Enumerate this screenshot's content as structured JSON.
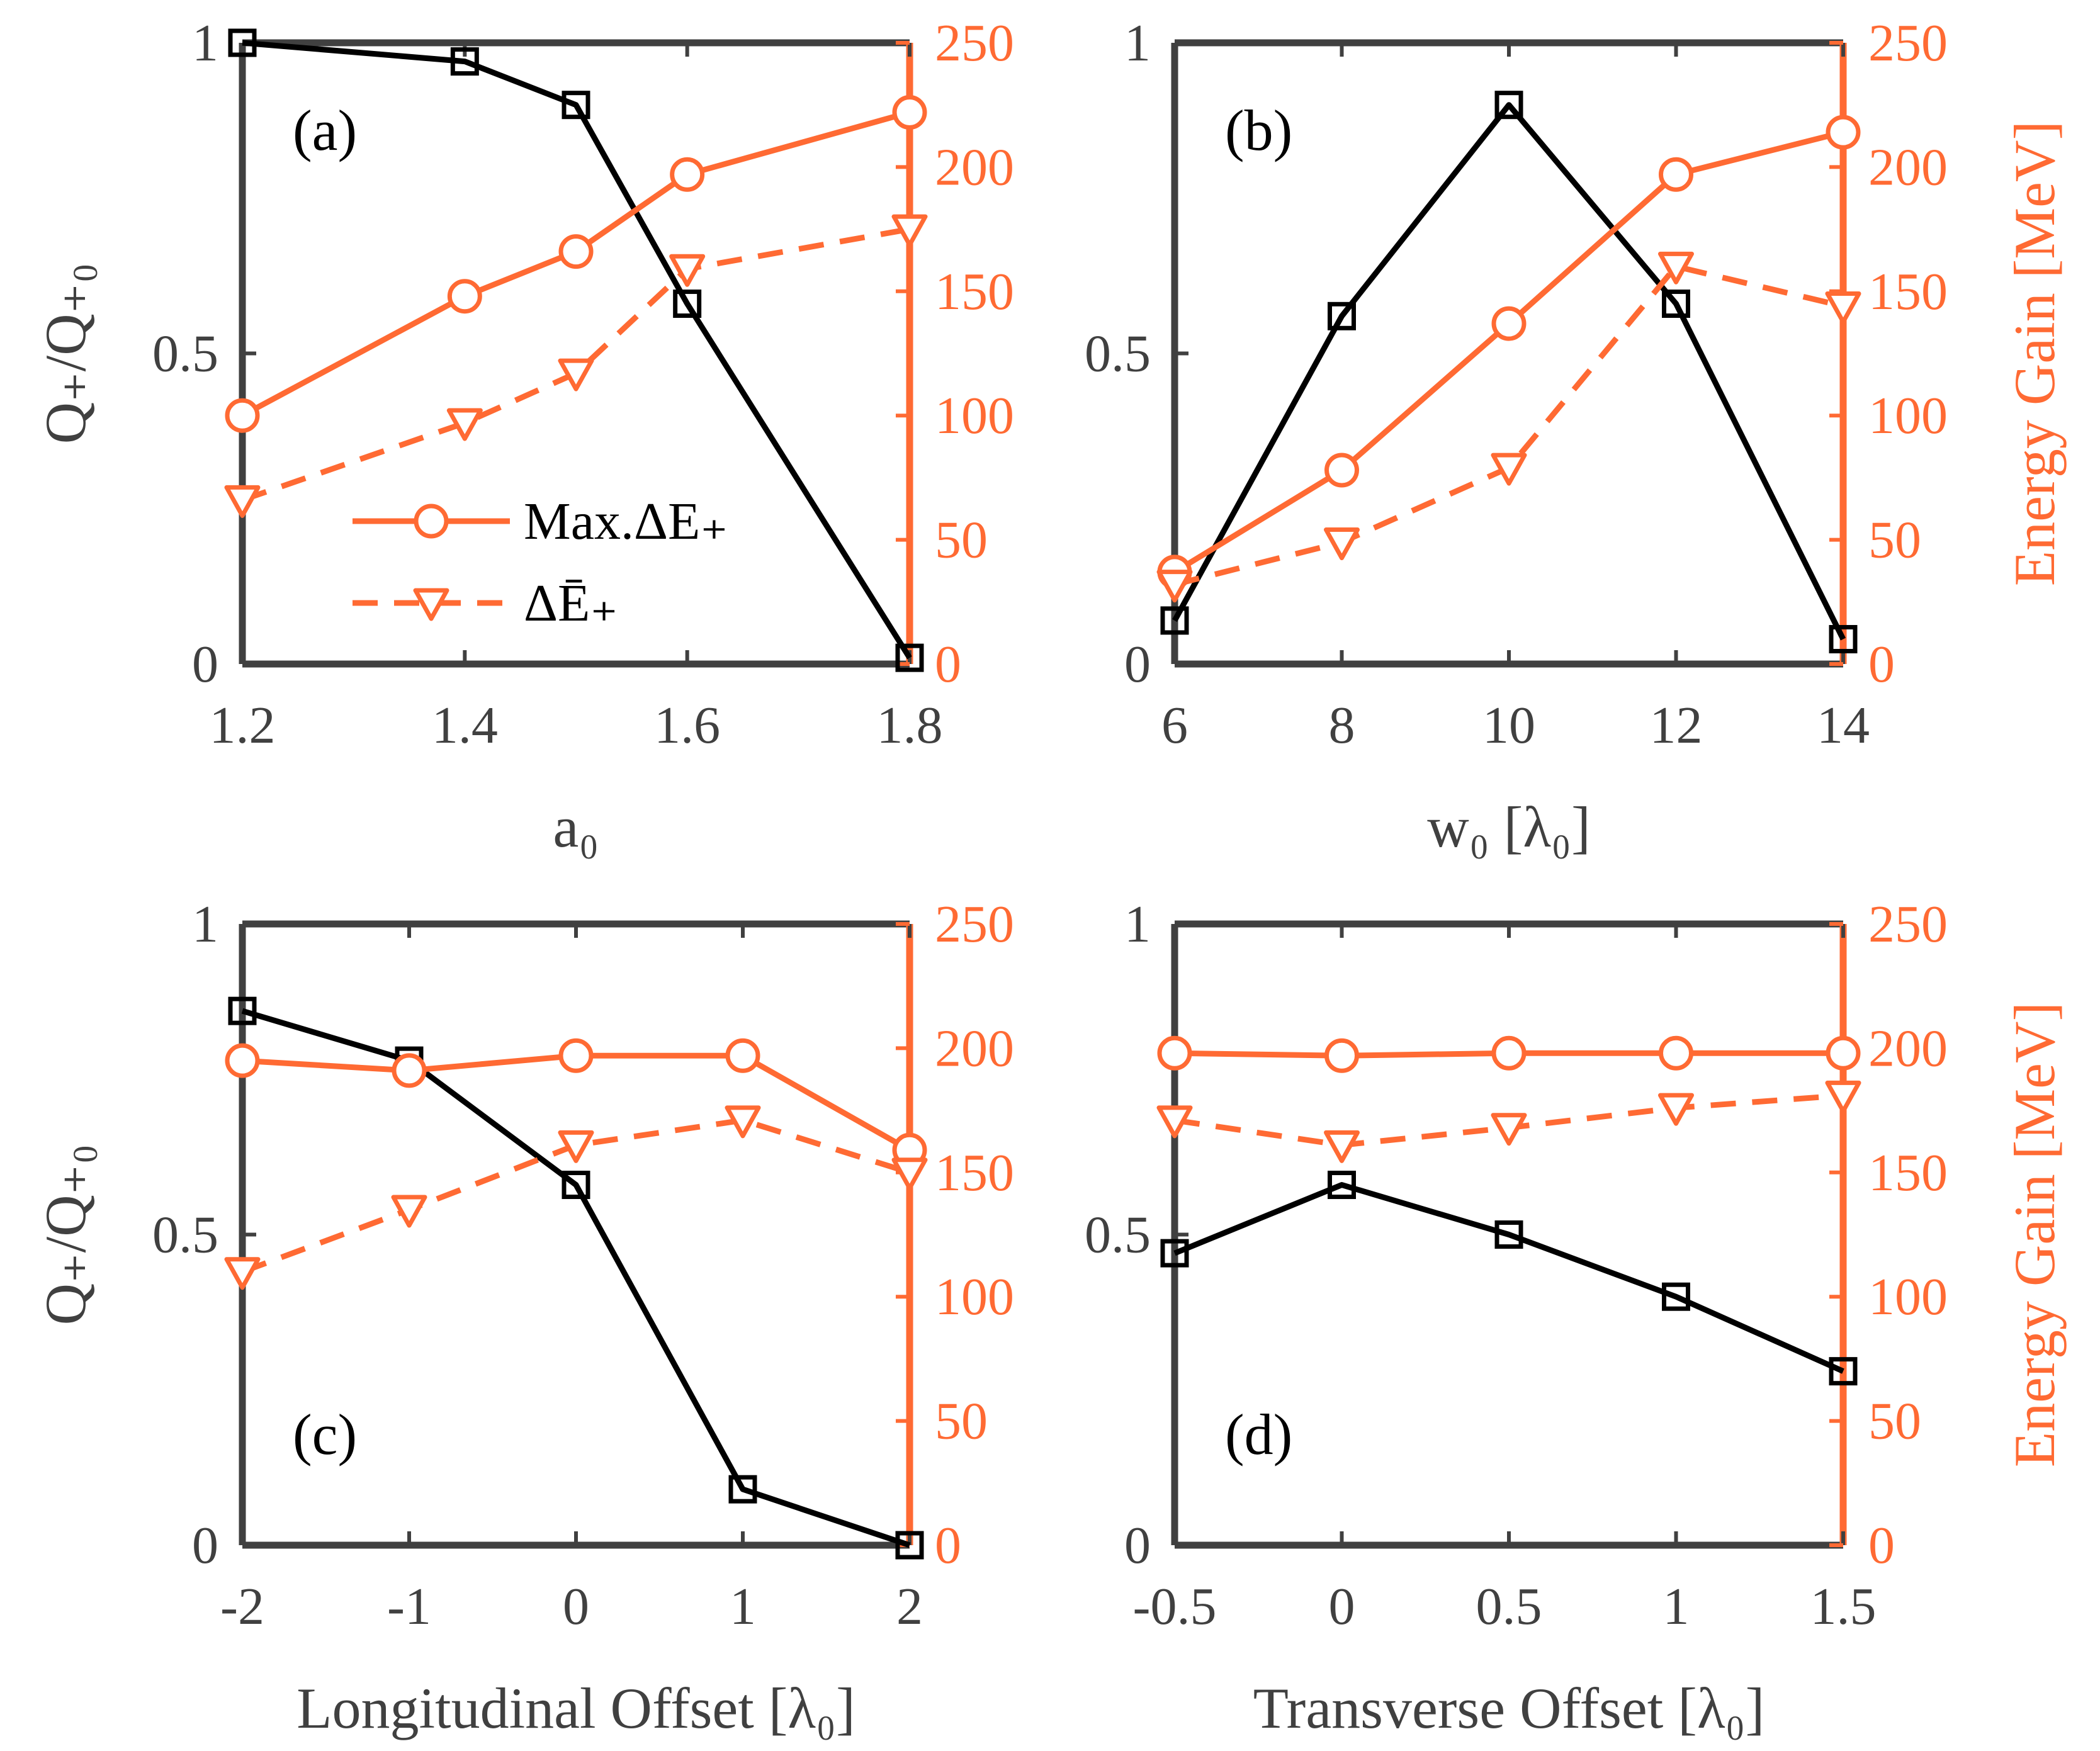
{
  "colors": {
    "q_series": "#000000",
    "energy_series": "#ff6a33",
    "axis": "#404040",
    "right_axis": "#ff6a33"
  },
  "legend": {
    "max": "Max.ΔE₊",
    "mean": "ΔĒ₊"
  },
  "chart_data": [
    {
      "type": "line",
      "panel_label": "(a)",
      "xlabel": "a₀",
      "ylabel_left": "Q₊/Q₊₀",
      "ylabel_right": "",
      "x": [
        1.2,
        1.4,
        1.5,
        1.6,
        1.8
      ],
      "xlim": [
        1.2,
        1.8
      ],
      "xticks": [
        1.2,
        1.4,
        1.6,
        1.8
      ],
      "xtick_labels": [
        "1.2",
        "1.4",
        "1.6",
        "1.8"
      ],
      "ylim_left": [
        0,
        1
      ],
      "yticks_left": [
        0,
        0.5,
        1
      ],
      "ytick_labels_left": [
        "0",
        "0.5",
        "1"
      ],
      "ylim_right": [
        0,
        250
      ],
      "yticks_right": [
        0,
        50,
        100,
        150,
        200,
        250
      ],
      "ytick_labels_right": [
        "0",
        "50",
        "100",
        "150",
        "200",
        "250"
      ],
      "series": [
        {
          "name": "Q₊/Q₊₀",
          "axis": "left",
          "values": [
            1.0,
            0.97,
            0.9,
            0.58,
            0.01
          ]
        },
        {
          "name": "Max.ΔE₊",
          "axis": "right",
          "values": [
            100,
            148,
            166,
            197,
            222
          ]
        },
        {
          "name": "ΔĒ₊",
          "axis": "right",
          "values": [
            66,
            97,
            117,
            159,
            175
          ]
        }
      ]
    },
    {
      "type": "line",
      "panel_label": "(b)",
      "xlabel": "w₀ [λ₀]",
      "ylabel_left": "",
      "ylabel_right": "Energy Gain [MeV]",
      "x": [
        6,
        8,
        10,
        12,
        14
      ],
      "xlim": [
        6,
        14
      ],
      "xticks": [
        6,
        8,
        10,
        12,
        14
      ],
      "xtick_labels": [
        "6",
        "8",
        "10",
        "12",
        "14"
      ],
      "ylim_left": [
        0,
        1
      ],
      "yticks_left": [
        0,
        0.5,
        1
      ],
      "ytick_labels_left": [
        "0",
        "0.5",
        "1"
      ],
      "ylim_right": [
        0,
        250
      ],
      "yticks_right": [
        0,
        50,
        100,
        150,
        200,
        250
      ],
      "ytick_labels_right": [
        "0",
        "50",
        "100",
        "150",
        "200",
        "250"
      ],
      "series": [
        {
          "name": "Q₊/Q₊₀",
          "axis": "left",
          "values": [
            0.07,
            0.56,
            0.9,
            0.58,
            0.04
          ]
        },
        {
          "name": "Max.ΔE₊",
          "axis": "right",
          "values": [
            37,
            78,
            137,
            197,
            214
          ]
        },
        {
          "name": "ΔĒ₊",
          "axis": "right",
          "values": [
            32,
            49,
            79,
            160,
            144
          ]
        }
      ]
    },
    {
      "type": "line",
      "panel_label": "(c)",
      "xlabel": "Longitudinal Offset [λ₀]",
      "ylabel_left": "Q₊/Q₊₀",
      "ylabel_right": "",
      "x": [
        -2,
        -1,
        0,
        1,
        2
      ],
      "xlim": [
        -2,
        2
      ],
      "xticks": [
        -2,
        -1,
        0,
        1,
        2
      ],
      "xtick_labels": [
        "-2",
        "-1",
        "0",
        "1",
        "2"
      ],
      "ylim_left": [
        0,
        1
      ],
      "yticks_left": [
        0,
        0.5,
        1
      ],
      "ytick_labels_left": [
        "0",
        "0.5",
        "1"
      ],
      "ylim_right": [
        0,
        250
      ],
      "yticks_right": [
        0,
        50,
        100,
        150,
        200,
        250
      ],
      "ytick_labels_right": [
        "0",
        "50",
        "100",
        "150",
        "200",
        "250"
      ],
      "series": [
        {
          "name": "Q₊/Q₊₀",
          "axis": "left",
          "values": [
            0.86,
            0.78,
            0.58,
            0.09,
            0.0
          ]
        },
        {
          "name": "Max.ΔE₊",
          "axis": "right",
          "values": [
            195,
            191,
            197,
            197,
            159
          ]
        },
        {
          "name": "ΔĒ₊",
          "axis": "right",
          "values": [
            110,
            135,
            161,
            171,
            150
          ]
        }
      ]
    },
    {
      "type": "line",
      "panel_label": "(d)",
      "xlabel": "Transverse Offset [λ₀]",
      "ylabel_left": "",
      "ylabel_right": "Energy Gain [MeV]",
      "x": [
        -0.5,
        0,
        0.5,
        1,
        1.5
      ],
      "xlim": [
        -0.5,
        1.5
      ],
      "xticks": [
        -0.5,
        0,
        0.5,
        1,
        1.5
      ],
      "xtick_labels": [
        "-0.5",
        "0",
        "0.5",
        "1",
        "1.5"
      ],
      "ylim_left": [
        0,
        1
      ],
      "yticks_left": [
        0,
        0.5,
        1
      ],
      "ytick_labels_left": [
        "0",
        "0.5",
        "1"
      ],
      "ylim_right": [
        0,
        250
      ],
      "yticks_right": [
        0,
        50,
        100,
        150,
        200,
        250
      ],
      "ytick_labels_right": [
        "0",
        "50",
        "100",
        "150",
        "200",
        "250"
      ],
      "series": [
        {
          "name": "Q₊/Q₊₀",
          "axis": "left",
          "values": [
            0.47,
            0.58,
            0.5,
            0.4,
            0.28
          ]
        },
        {
          "name": "Max.ΔE₊",
          "axis": "right",
          "values": [
            198,
            197,
            198,
            198,
            198
          ]
        },
        {
          "name": "ΔĒ₊",
          "axis": "right",
          "values": [
            171,
            161,
            168,
            176,
            181
          ]
        }
      ]
    }
  ]
}
